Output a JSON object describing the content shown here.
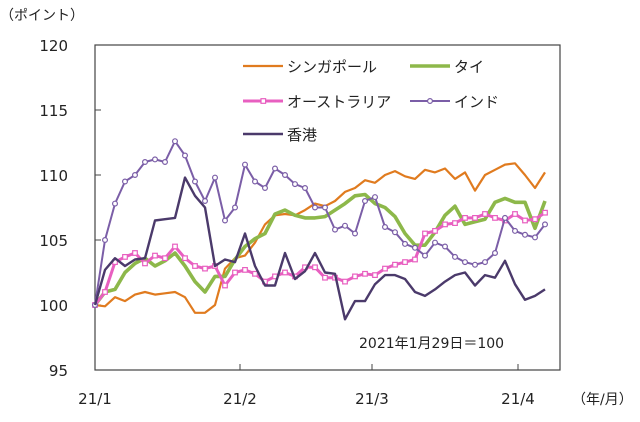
{
  "chart_data": {
    "type": "line",
    "ylabel": "（ポイント）",
    "xlabel": "（年/月）",
    "ylim": [
      95,
      120
    ],
    "yticks": [
      95,
      100,
      105,
      110,
      115,
      120
    ],
    "xticks": [
      {
        "label": "21/1",
        "at": 0
      },
      {
        "label": "21/2",
        "at": 14.5
      },
      {
        "label": "21/3",
        "at": 27.7
      },
      {
        "label": "21/4",
        "at": 42.3
      }
    ],
    "annotation": "2021年1月29日＝100",
    "grid": false,
    "legend_position": "top-right",
    "series": [
      {
        "name": "シンガポール",
        "color": "#E07B1F",
        "markers": false,
        "width": 2.2,
        "values": [
          100,
          99.9,
          100.6,
          100.3,
          100.8,
          101.0,
          100.8,
          100.9,
          101.0,
          100.6,
          99.4,
          99.4,
          100.0,
          102.8,
          103.6,
          103.8,
          104.8,
          106.2,
          106.9,
          107.0,
          106.9,
          107.3,
          107.8,
          107.6,
          108.0,
          108.7,
          109.0,
          109.6,
          109.4,
          110.0,
          110.3,
          109.9,
          109.7,
          110.4,
          110.2,
          110.5,
          109.7,
          110.2,
          108.8,
          110.0,
          110.4,
          110.8,
          110.9,
          110.0,
          109.0,
          110.2
        ]
      },
      {
        "name": "タイ",
        "color": "#8DB84A",
        "markers": false,
        "width": 3.6,
        "values": [
          100,
          101,
          101.2,
          102.5,
          103.2,
          103.6,
          103,
          103.4,
          104,
          103,
          101.8,
          101,
          102.2,
          102.2,
          103.5,
          104.5,
          105.1,
          105.5,
          107,
          107.3,
          106.9,
          106.7,
          106.7,
          106.8,
          107.3,
          107.8,
          108.4,
          108.5,
          107.8,
          107.5,
          106.8,
          105.5,
          104.6,
          104.6,
          105.6,
          106.9,
          107.6,
          106.2,
          106.4,
          106.6,
          107.9,
          108.2,
          107.9,
          107.9,
          105.9,
          108.0
        ]
      },
      {
        "name": "オーストラリア",
        "color": "#E85FC0",
        "markers": true,
        "marker": "square",
        "width": 3,
        "values": [
          100,
          101,
          103.3,
          103.7,
          104,
          103.2,
          103.8,
          103.6,
          104.5,
          103.6,
          103,
          102.8,
          103,
          101.5,
          102.5,
          102.7,
          102.4,
          101.8,
          102.2,
          102.5,
          102.2,
          102.9,
          102.9,
          102.1,
          102.1,
          101.8,
          102.2,
          102.4,
          102.3,
          102.8,
          103.1,
          103.3,
          103.5,
          105.5,
          105.7,
          106.2,
          106.3,
          106.7,
          106.7,
          107,
          106.7,
          106.5,
          107,
          106.5,
          106.6,
          107.1
        ]
      },
      {
        "name": "インド",
        "color": "#7B5EA7",
        "markers": true,
        "marker": "circle",
        "width": 2,
        "values": [
          100,
          105,
          107.8,
          109.5,
          110,
          111,
          111.2,
          111,
          112.6,
          111.5,
          109.5,
          108,
          109.8,
          106.5,
          107.5,
          110.8,
          109.5,
          109,
          110.5,
          110,
          109.3,
          109,
          107.5,
          107.5,
          105.8,
          106.1,
          105.5,
          108,
          108.3,
          106,
          105.6,
          104.7,
          104.4,
          103.8,
          104.8,
          104.5,
          103.7,
          103.3,
          103.1,
          103.3,
          104,
          106.7,
          105.7,
          105.4,
          105.2,
          106.2
        ]
      },
      {
        "name": "香港",
        "color": "#4B3A6B",
        "markers": false,
        "width": 2.4,
        "values": [
          100,
          102.7,
          103.6,
          103,
          103.5,
          103.6,
          106.5,
          106.6,
          106.7,
          109.8,
          108.4,
          107.5,
          103,
          103.5,
          103.3,
          105.5,
          103,
          101.5,
          101.5,
          104,
          102,
          102.6,
          104,
          102.5,
          102.4,
          98.9,
          100.3,
          100.3,
          101.6,
          102.3,
          102.3,
          102,
          101,
          100.7,
          101.2,
          101.8,
          102.3,
          102.5,
          101.5,
          102.3,
          102.1,
          103.4,
          101.6,
          100.4,
          100.7,
          101.2
        ]
      }
    ]
  }
}
